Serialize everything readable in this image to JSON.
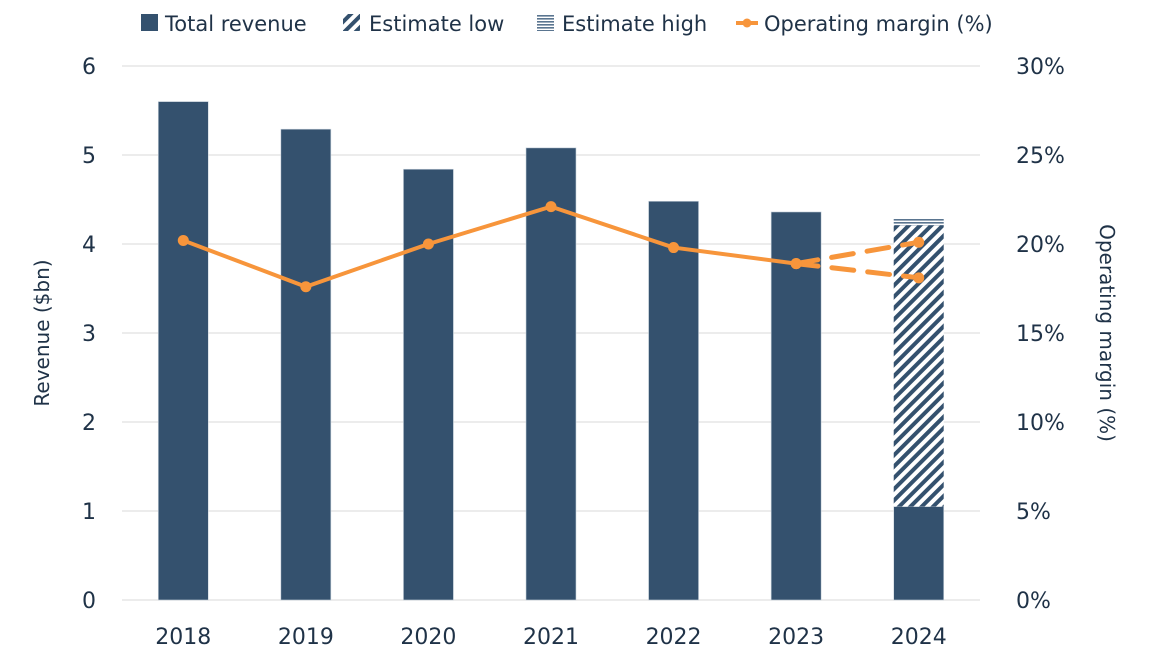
{
  "chart_data": {
    "type": "bar",
    "title": "",
    "categories": [
      "2018",
      "2019",
      "2020",
      "2021",
      "2022",
      "2023",
      "2024"
    ],
    "series": [
      {
        "name": "Total revenue",
        "type": "bar",
        "axis": "left",
        "values": [
          5.6,
          5.29,
          4.84,
          5.08,
          4.48,
          4.36,
          1.05
        ]
      },
      {
        "name": "Estimate low",
        "type": "bar-stacked-hatched",
        "axis": "left",
        "values": [
          null,
          null,
          null,
          null,
          null,
          null,
          3.16
        ]
      },
      {
        "name": "Estimate high",
        "type": "bar-stacked-lined",
        "axis": "left",
        "values": [
          null,
          null,
          null,
          null,
          null,
          null,
          0.08
        ]
      },
      {
        "name": "Operating margin (%)",
        "type": "line",
        "axis": "right",
        "values": [
          20.2,
          17.6,
          20.0,
          22.1,
          19.8,
          18.9,
          null
        ]
      },
      {
        "name": "Operating margin estimate high",
        "type": "line-dashed",
        "axis": "right",
        "values": [
          null,
          null,
          null,
          null,
          null,
          18.9,
          20.1
        ]
      },
      {
        "name": "Operating margin estimate low",
        "type": "line-dashed",
        "axis": "right",
        "values": [
          null,
          null,
          null,
          null,
          null,
          18.9,
          18.1
        ]
      }
    ],
    "ylabel": "Revenue ($bn)",
    "ylim": [
      0,
      6
    ],
    "yticks": [
      "0",
      "1",
      "2",
      "3",
      "4",
      "5",
      "6"
    ],
    "y2label": "Operating margin (%)",
    "y2lim": [
      0,
      30
    ],
    "y2ticks": [
      "0%",
      "5%",
      "10%",
      "15%",
      "20%",
      "25%",
      "30%"
    ],
    "grid": true,
    "legend_position": "top",
    "legend": [
      {
        "label": "Total revenue",
        "marker": "square"
      },
      {
        "label": "Estimate low",
        "marker": "diagonal-hatch"
      },
      {
        "label": "Estimate high",
        "marker": "horizontal-lines"
      },
      {
        "label": "Operating margin (%)",
        "marker": "line-dot"
      }
    ],
    "colors": {
      "bar": "#34516e",
      "line": "#f7953b",
      "grid": "#e6e6e6",
      "text": "#1f3247"
    }
  }
}
